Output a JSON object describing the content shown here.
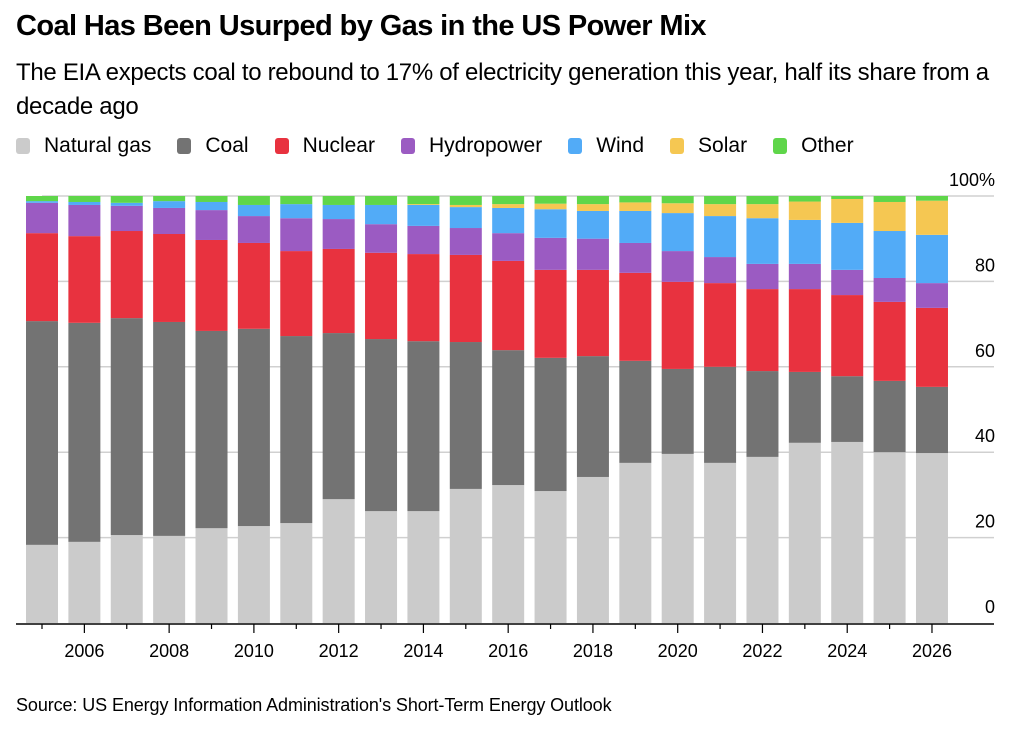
{
  "header": {
    "title": "Coal Has Been Usurped by Gas in the US Power Mix",
    "subtitle": "The EIA expects coal to rebound to 17% of electricity generation this year, half its share from a decade ago"
  },
  "footer": {
    "source": "Source: US Energy Information Administration's Short-Term Energy Outlook"
  },
  "chart_data": {
    "type": "bar",
    "stacked": true,
    "title": "Coal Has Been Usurped by Gas in the US Power Mix",
    "subtitle": "The EIA expects coal to rebound to 17% of electricity generation this year, half its share from a decade ago",
    "xlabel": "",
    "ylabel": "",
    "ylim": [
      0,
      100
    ],
    "y_ticks": [
      0,
      20,
      40,
      60,
      80,
      100
    ],
    "y_tick_labels": [
      "0",
      "20",
      "40",
      "60",
      "80",
      "100%"
    ],
    "y_axis_position": "right",
    "grid": true,
    "legend_position": "top-left",
    "categories": [
      2005,
      2006,
      2007,
      2008,
      2009,
      2010,
      2011,
      2012,
      2013,
      2014,
      2015,
      2016,
      2017,
      2018,
      2019,
      2020,
      2021,
      2022,
      2023,
      2024,
      2025,
      2026
    ],
    "x_tick_labels": [
      "2006",
      "2008",
      "2010",
      "2012",
      "2014",
      "2016",
      "2018",
      "2020",
      "2022",
      "2024",
      "2026"
    ],
    "series": [
      {
        "name": "Natural gas",
        "color": "#cbcbcb",
        "values": [
          18.3,
          19.0,
          20.6,
          20.4,
          22.2,
          22.7,
          23.4,
          29.0,
          26.2,
          26.2,
          31.4,
          32.3,
          30.9,
          34.2,
          37.5,
          39.6,
          37.5,
          38.9,
          42.2,
          42.4,
          40.0,
          39.8
        ]
      },
      {
        "name": "Coal",
        "color": "#737373",
        "values": [
          52.4,
          51.3,
          50.8,
          50.1,
          46.2,
          46.2,
          43.8,
          38.9,
          40.3,
          39.8,
          34.4,
          31.6,
          31.2,
          28.3,
          23.9,
          19.9,
          22.5,
          20.1,
          16.6,
          15.4,
          16.7,
          15.5
        ]
      },
      {
        "name": "Nuclear",
        "color": "#e8323f",
        "values": [
          20.6,
          20.3,
          20.4,
          20.6,
          21.3,
          20.1,
          19.9,
          19.7,
          20.2,
          20.4,
          20.4,
          20.9,
          20.6,
          20.2,
          20.6,
          20.4,
          19.6,
          19.2,
          19.4,
          19.0,
          18.5,
          18.5
        ]
      },
      {
        "name": "Hydropower",
        "color": "#9b5bc2",
        "values": [
          7.1,
          7.3,
          5.9,
          6.1,
          7.0,
          6.3,
          7.7,
          7.0,
          6.7,
          6.6,
          6.3,
          6.5,
          7.5,
          7.3,
          7.0,
          7.2,
          6.1,
          5.9,
          5.9,
          5.9,
          5.6,
          5.8
        ]
      },
      {
        "name": "Wind",
        "color": "#52abf7",
        "values": [
          0.4,
          0.7,
          0.7,
          1.6,
          1.9,
          2.6,
          3.3,
          3.3,
          4.5,
          4.9,
          4.9,
          5.9,
          6.7,
          6.5,
          7.5,
          8.9,
          9.6,
          10.7,
          10.3,
          11.0,
          11.0,
          11.3
        ]
      },
      {
        "name": "Solar",
        "color": "#f5c752",
        "values": [
          0,
          0,
          0,
          0,
          0,
          0,
          0,
          0,
          0,
          0.2,
          0.5,
          0.9,
          1.3,
          1.6,
          2.0,
          2.3,
          2.8,
          3.3,
          4.3,
          5.6,
          6.8,
          8.0
        ]
      },
      {
        "name": "Other",
        "color": "#5fd64a",
        "values": [
          1.2,
          1.4,
          1.6,
          1.2,
          1.4,
          2.1,
          1.9,
          2.1,
          2.1,
          1.9,
          2.1,
          1.9,
          1.8,
          1.9,
          1.5,
          1.7,
          1.9,
          1.9,
          1.3,
          0.7,
          1.4,
          1.1
        ]
      }
    ]
  }
}
